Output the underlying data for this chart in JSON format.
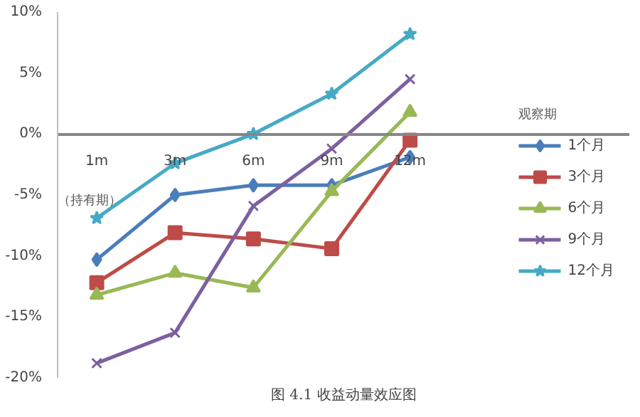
{
  "chart_data": {
    "type": "line",
    "xlabel": "（持有期）",
    "legend_title": "观察期",
    "legend": "right",
    "categories": [
      "1m",
      "3m",
      "6m",
      "9m",
      "12m"
    ],
    "ylim": [
      -20,
      10
    ],
    "yticks": [
      {
        "value": -20,
        "label": "-20%"
      },
      {
        "value": -15,
        "label": "-15%"
      },
      {
        "value": -10,
        "label": "-10%"
      },
      {
        "value": -5,
        "label": "-5%"
      },
      {
        "value": 0,
        "label": "0%"
      },
      {
        "value": 5,
        "label": "5%"
      },
      {
        "value": 10,
        "label": "10%"
      }
    ],
    "series": [
      {
        "name": "1个月",
        "color": "#4a7ebb",
        "marker": "diamond",
        "values": [
          -10.3,
          -5.0,
          -4.2,
          -4.2,
          -1.9
        ]
      },
      {
        "name": "3个月",
        "color": "#be4b48",
        "marker": "square",
        "values": [
          -12.2,
          -8.1,
          -8.6,
          -9.4,
          -0.5
        ]
      },
      {
        "name": "6个月",
        "color": "#98b954",
        "marker": "triangle",
        "values": [
          -13.2,
          -11.4,
          -12.6,
          -4.7,
          1.8
        ]
      },
      {
        "name": "9个月",
        "color": "#7d60a0",
        "marker": "cross",
        "values": [
          -18.8,
          -16.3,
          -5.9,
          -1.2,
          4.5
        ]
      },
      {
        "name": "12个月",
        "color": "#46aac5",
        "marker": "star",
        "values": [
          -6.9,
          -2.4,
          0.0,
          3.3,
          8.2
        ]
      }
    ],
    "annotations": [
      "图 4.1 收益动量效应图"
    ]
  }
}
